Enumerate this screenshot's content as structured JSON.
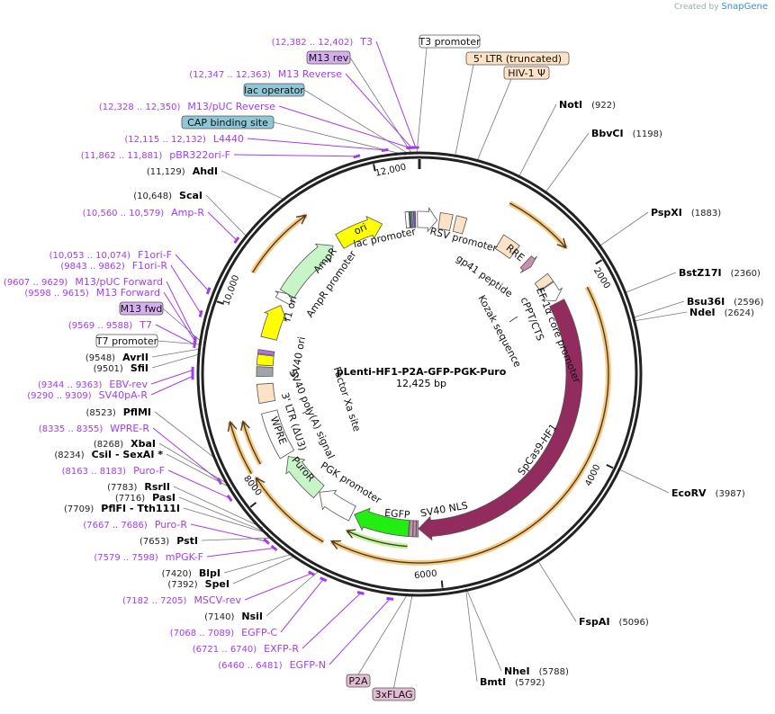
{
  "credit": {
    "prefix": "Created by",
    "brand": "SnapGene"
  },
  "title": "pLenti-HF1-P2A-GFP-PGK-Puro",
  "length": "12,425 bp",
  "total_bp": 12425,
  "ticks": [
    "2000",
    "4000",
    "6000",
    "8000",
    "10,000",
    "12,000"
  ],
  "colors": {
    "primer": "#a23cf0",
    "orf": "#f5b556",
    "ring": "#222222",
    "cas9": "#922b5e",
    "egfp": "#22ee11",
    "resistance": "#c8f5c8",
    "ori": "#ffff00",
    "misc": "#fbd9b5",
    "tag": "#c890b0",
    "grey": "#a0a4a8",
    "teal": "#8fc7d6"
  },
  "annotations": [
    {
      "type": "primer",
      "range": "(12,382 .. 12,402)",
      "name": "T3",
      "bp": 12392
    },
    {
      "type": "box",
      "name": "M13 rev",
      "bp": 12363,
      "fill": "#d6b0ee"
    },
    {
      "type": "primer",
      "range": "(12,347 .. 12,363)",
      "name": "M13 Reverse",
      "bp": 12355
    },
    {
      "type": "box",
      "name": "lac operator",
      "bp": 12343,
      "fill": "#8fc7d6"
    },
    {
      "type": "primer",
      "range": "(12,328 .. 12,350)",
      "name": "M13/pUC Reverse",
      "bp": 12339
    },
    {
      "type": "box",
      "name": "CAP binding site",
      "bp": 12305,
      "fill": "#8fc7d6"
    },
    {
      "type": "primer",
      "range": "(12,115 .. 12,132)",
      "name": "L4440",
      "bp": 12123
    },
    {
      "type": "primer",
      "range": "(11,862 .. 11,881)",
      "name": "pBR322ori-F",
      "bp": 11871
    },
    {
      "type": "enzyme",
      "pos": "(11,129)",
      "name": "AhdI",
      "bp": 11129
    },
    {
      "type": "enzyme",
      "pos": "(10,648)",
      "name": "ScaI",
      "bp": 10648
    },
    {
      "type": "primer",
      "range": "(10,560 .. 10,579)",
      "name": "Amp-R",
      "bp": 10570
    },
    {
      "type": "primer",
      "range": "(10,053 .. 10,074)",
      "name": "F1ori-F",
      "bp": 10063
    },
    {
      "type": "primer",
      "range": "(9843 .. 9862)",
      "name": "F1ori-R",
      "bp": 9852
    },
    {
      "type": "primer",
      "range": "(9607 .. 9629)",
      "name": "M13/pUC Forward",
      "bp": 9618
    },
    {
      "type": "primer",
      "range": "(9598 .. 9615)",
      "name": "M13 Forward",
      "bp": 9606
    },
    {
      "type": "box",
      "name": "M13 fwd",
      "bp": 9606,
      "fill": "#d6b0ee"
    },
    {
      "type": "primer",
      "range": "(9569 .. 9588)",
      "name": "T7",
      "bp": 9578
    },
    {
      "type": "box",
      "name": "T7 promoter",
      "bp": 9585,
      "fill": "#ffffff"
    },
    {
      "type": "enzyme",
      "pos": "(9548)",
      "name": "AvrII",
      "bp": 9548
    },
    {
      "type": "enzyme",
      "pos": "(9501)",
      "name": "SfiI",
      "bp": 9501
    },
    {
      "type": "primer",
      "range": "(9344 .. 9363)",
      "name": "EBV-rev",
      "bp": 9353
    },
    {
      "type": "primer",
      "range": "(9290 .. 9309)",
      "name": "SV40pA-R",
      "bp": 9300
    },
    {
      "type": "enzyme",
      "pos": "(8523)",
      "name": "PflMI",
      "bp": 8523
    },
    {
      "type": "primer",
      "range": "(8335 .. 8355)",
      "name": "WPRE-R",
      "bp": 8345
    },
    {
      "type": "enzyme",
      "pos": "(8268)",
      "name": "XbaI",
      "bp": 8268
    },
    {
      "type": "enzyme",
      "pos": "(8234)",
      "name": "CsiI  - SexAI *",
      "bp": 8234
    },
    {
      "type": "primer",
      "range": "(8163 .. 8183)",
      "name": "Puro-F",
      "bp": 8173
    },
    {
      "type": "enzyme",
      "pos": "(7783)",
      "name": "RsrII",
      "bp": 7783
    },
    {
      "type": "enzyme",
      "pos": "(7716)",
      "name": "PasI",
      "bp": 7716
    },
    {
      "type": "enzyme",
      "pos": "(7709)",
      "name": "PflFI  - Tth111I",
      "bp": 7709
    },
    {
      "type": "primer",
      "range": "(7667 .. 7686)",
      "name": "Puro-R",
      "bp": 7676
    },
    {
      "type": "enzyme",
      "pos": "(7653)",
      "name": "PstI",
      "bp": 7653
    },
    {
      "type": "primer",
      "range": "(7579 .. 7598)",
      "name": "mPGK-F",
      "bp": 7588
    },
    {
      "type": "enzyme",
      "pos": "(7420)",
      "name": "BlpI",
      "bp": 7420
    },
    {
      "type": "enzyme",
      "pos": "(7392)",
      "name": "SpeI",
      "bp": 7392
    },
    {
      "type": "primer",
      "range": "(7182 .. 7205)",
      "name": "MSCV-rev",
      "bp": 7193
    },
    {
      "type": "enzyme",
      "pos": "(7140)",
      "name": "NsiI",
      "bp": 7140
    },
    {
      "type": "primer",
      "range": "(7068 .. 7089)",
      "name": "EGFP-C",
      "bp": 7078
    },
    {
      "type": "primer",
      "range": "(6721 .. 6740)",
      "name": "EXFP-R",
      "bp": 6730
    },
    {
      "type": "primer",
      "range": "(6460 .. 6481)",
      "name": "EGFP-N",
      "bp": 6470
    },
    {
      "type": "box",
      "name": "P2A",
      "bp": 6315,
      "fill": "#e2bcd0"
    },
    {
      "type": "box",
      "name": "3xFLAG",
      "bp": 6274,
      "fill": "#e2bcd0"
    },
    {
      "type": "box",
      "name": "T3 promoter",
      "bp": 12400,
      "fill": "#ffffff"
    },
    {
      "type": "box",
      "name": "5' LTR (truncated)",
      "bp": 320,
      "fill": "#fde2c6"
    },
    {
      "type": "box",
      "name": "HIV-1 Ψ",
      "bp": 520,
      "fill": "#fde2c6"
    },
    {
      "type": "renzyme",
      "pos": "(922)",
      "name": "NotI",
      "bp": 922
    },
    {
      "type": "renzyme",
      "pos": "(1198)",
      "name": "BbvCI",
      "bp": 1198
    },
    {
      "type": "renzyme",
      "pos": "(1883)",
      "name": "PspXI",
      "bp": 1883
    },
    {
      "type": "renzyme",
      "pos": "(2360)",
      "name": "BstZ17I",
      "bp": 2360
    },
    {
      "type": "renzyme",
      "pos": "(2596)",
      "name": "Bsu36I",
      "bp": 2596
    },
    {
      "type": "renzyme",
      "pos": "(2624)",
      "name": "NdeI",
      "bp": 2624
    },
    {
      "type": "renzyme",
      "pos": "(3987)",
      "name": "EcoRV",
      "bp": 3987
    },
    {
      "type": "renzyme",
      "pos": "(5096)",
      "name": "FspAI",
      "bp": 5096
    },
    {
      "type": "renzyme",
      "pos": "(5788)",
      "name": "NheI",
      "bp": 5788
    },
    {
      "type": "renzyme",
      "pos": "(5792)",
      "name": "BmtI",
      "bp": 5792
    }
  ],
  "features": [
    {
      "label": "lac promoter",
      "start": 12250,
      "end": 12330,
      "fill": "#ffffff",
      "shape": "box"
    },
    {
      "label": "",
      "start": 12295,
      "end": 12318,
      "fill": "#2f5d6a",
      "shape": "box"
    },
    {
      "label": "",
      "start": 12335,
      "end": 12352,
      "fill": "#8fc7d6",
      "shape": "box"
    },
    {
      "label": "",
      "start": 12355,
      "end": 12375,
      "fill": "#a23cf0",
      "shape": "box"
    },
    {
      "label": "RSV promoter",
      "start": 12400,
      "end": 12652,
      "fill": "#ffffff",
      "shape": "arrow"
    },
    {
      "label": "",
      "start": 255,
      "end": 410,
      "fill": "#fde2c6",
      "shape": "box"
    },
    {
      "label": "",
      "start": 455,
      "end": 585,
      "fill": "#fde2c6",
      "shape": "box"
    },
    {
      "label": "RRE",
      "start": 1075,
      "end": 1310,
      "fill": "#fde2c6",
      "shape": "box"
    },
    {
      "label": "gp41 peptide",
      "start": 1500,
      "end": 1590,
      "fill": "#c890b0",
      "shape": "arrow"
    },
    {
      "label": "cPPT/CTS",
      "start": 1790,
      "end": 1905,
      "fill": "#fde2c6",
      "shape": "box"
    },
    {
      "label": "EF-1α core promoter",
      "start": 1915,
      "end": 2130,
      "fill": "#ffffff",
      "shape": "arrow"
    },
    {
      "label": "SpCas9-HF1",
      "start": 2160,
      "end": 6225,
      "fill": "#922b5e",
      "shape": "arrow"
    },
    {
      "label": "SV40 NLS",
      "start": 6228,
      "end": 6252,
      "fill": "#c890b0",
      "shape": "box"
    },
    {
      "label": "",
      "start": 6256,
      "end": 6292,
      "fill": "#c890b0",
      "shape": "box"
    },
    {
      "label": "",
      "start": 6296,
      "end": 6340,
      "fill": "#c890b0",
      "shape": "box"
    },
    {
      "label": "EGFP",
      "start": 6350,
      "end": 7070,
      "fill": "#22ee11",
      "shape": "arrow"
    },
    {
      "label": "PGK promoter",
      "start": 7100,
      "end": 7600,
      "fill": "#ffffff",
      "shape": "arrow"
    },
    {
      "label": "PuroR",
      "start": 7610,
      "end": 8210,
      "fill": "#c8f5c8",
      "shape": "arrow"
    },
    {
      "label": "WPRE",
      "start": 8240,
      "end": 8830,
      "fill": "#ffffff",
      "shape": "box"
    },
    {
      "label": "3' LTR (ΔU3)",
      "start": 8960,
      "end": 9195,
      "fill": "#fde2c6",
      "shape": "box"
    },
    {
      "label": "SV40 poly(A) signal",
      "start": 9290,
      "end": 9410,
      "fill": "#a0a4a8",
      "shape": "box"
    },
    {
      "label": "SV40 ori",
      "start": 9430,
      "end": 9560,
      "fill": "#ffff00",
      "shape": "box"
    },
    {
      "label": "",
      "start": 9570,
      "end": 9620,
      "fill": "#b070e0",
      "shape": "box"
    },
    {
      "label": "f1 ori",
      "start": 9780,
      "end": 10230,
      "fill": "#ffff00",
      "shape": "arrow"
    },
    {
      "label": "AmpR promoter",
      "start": 10290,
      "end": 10400,
      "fill": "#ffffff",
      "shape": "arrow"
    },
    {
      "label": "AmpR",
      "start": 10400,
      "end": 11255,
      "fill": "#c8f5c8",
      "shape": "arrow"
    },
    {
      "label": "ori",
      "start": 11355,
      "end": 11945,
      "fill": "#ffff00",
      "shape": "arrow"
    }
  ],
  "sites": [
    "Kozak sequence",
    "Factor Xa site"
  ],
  "orfs": [
    {
      "start": 960,
      "end": 1700,
      "color": "#f5b556"
    },
    {
      "start": 2160,
      "end": 7170,
      "color": "#f5b556"
    },
    {
      "start": 7240,
      "end": 8200,
      "color": "#f5b556"
    },
    {
      "start": 8260,
      "end": 8830,
      "color": "#f5b556"
    },
    {
      "start": 8300,
      "end": 8800,
      "color": "#f5b556"
    },
    {
      "start": 10400,
      "end": 11200,
      "color": "#f5b556"
    },
    {
      "start": 6350,
      "end": 7070,
      "color": "#a8f07a"
    }
  ]
}
